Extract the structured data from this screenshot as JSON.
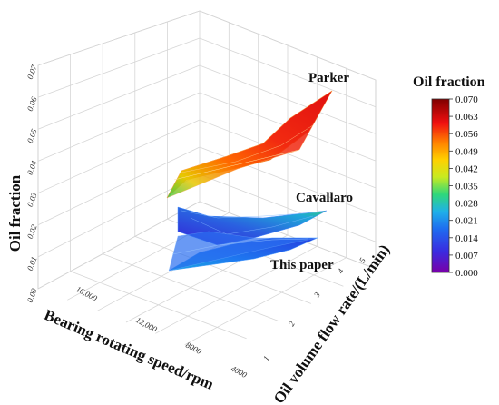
{
  "chart_data": {
    "type": "surface3d",
    "zlabel": "Oil fraction",
    "xlabel": "Bearing rotating speed/rpm",
    "ylabel": "Oil volume flow rate/(L/min)",
    "z_ticks": [
      "0.00",
      "0.01",
      "0.02",
      "0.03",
      "0.04",
      "0.05",
      "0.06",
      "0.07"
    ],
    "x_ticks": [
      "16,000",
      "12,000",
      "8000",
      "4000"
    ],
    "y_ticks": [
      "1",
      "2",
      "3",
      "4",
      "5"
    ],
    "zlim": [
      0,
      0.07
    ],
    "grid": true,
    "surfaces": [
      {
        "name": "Parker",
        "z_min": 0.03,
        "z_max": 0.068
      },
      {
        "name": "Cavallaro",
        "z_min": 0.015,
        "z_max": 0.026
      },
      {
        "name": "This paper",
        "z_min": 0.0,
        "z_max": 0.014
      }
    ],
    "colorbar": {
      "title": "Oil fraction",
      "ticks": [
        "0.070",
        "0.063",
        "0.056",
        "0.049",
        "0.042",
        "0.035",
        "0.028",
        "0.021",
        "0.014",
        "0.007",
        "0.000"
      ],
      "range": [
        0,
        0.07
      ]
    }
  }
}
